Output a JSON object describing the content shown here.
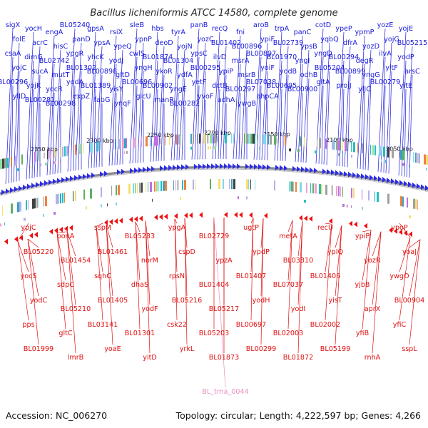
{
  "title": "Bacillus licheniformis ATCC 14580, complete genome",
  "footer": {
    "accession": "Accession: NC_006270",
    "summary": "Topology: circular; Length: 4,222,597 bp; Genes: 4,266"
  },
  "colors": {
    "forward_label": "#1a1adc",
    "reverse_label": "#e01010",
    "rna_label": "#e890c0",
    "forward_arrow": "#2a2aee",
    "reverse_arrow": "#ee1010",
    "backbone": "#8a8a8a"
  },
  "ruler": [
    "2350 kbp",
    "2300 kbp",
    "2250 kbp",
    "2200 kbp",
    "2150 kbp",
    "2100 kbp",
    "2050 kbp"
  ],
  "forward_genes": [
    "sigX",
    "yocH",
    "engA",
    "BL05240",
    "gpsA",
    "rsiX",
    "sleB",
    "hbs",
    "tyrA",
    "panB",
    "recQ",
    "fni",
    "aroB",
    "trpA",
    "panC",
    "cotD",
    "ypeP",
    "ypmP",
    "yozE",
    "yojE",
    "folE",
    "acrC",
    "hisC",
    "panD",
    "ypsA",
    "ypeQ",
    "ypnP",
    "deoD",
    "yojN",
    "yozC",
    "BL01402",
    "BL00896",
    "ypiF",
    "BL02739",
    "ypsB",
    "yqbQ",
    "dfrA",
    "yozD",
    "yojG",
    "BL05215",
    "csaA",
    "dimG",
    "BL02742",
    "ypgR",
    "yhcK",
    "yodJ",
    "cwlS",
    "BL01874",
    "BL01304",
    "ypsC",
    "ilvD",
    "msrA",
    "BL00897",
    "BL01970",
    "yngI",
    "yngD",
    "BL00294",
    "degR",
    "ilvA",
    "yodP",
    "yojC",
    "sucA",
    "mutT",
    "BL01302",
    "BL00898",
    "gltD",
    "yngH",
    "ykoR",
    "ydfA",
    "BL00295",
    "ypiP",
    "msrB",
    "yoiF",
    "yodB",
    "odhB",
    "BL05204",
    "BL00899",
    "yngG",
    "yitF",
    "arsC",
    "BL00296",
    "yojK",
    "yocR",
    "yodA",
    "BL01389",
    "yisY",
    "BL00696",
    "BL00902",
    "yngE",
    "yetF",
    "dctB",
    "BL00297",
    "BL07038",
    "BL00695",
    "BL00900",
    "gltA",
    "projJ",
    "ylJC",
    "BL00279",
    "yitE",
    "ylJD",
    "BL00281",
    "BL00298",
    "expZ",
    "fabG",
    "ynqF",
    "glcU",
    "manR",
    "BL00282",
    "yvoF",
    "adhA",
    "ywgB",
    "ahpCA"
  ],
  "reverse_genes": [
    "ypjC",
    "ponA",
    "sspM",
    "BL05233",
    "ypgA",
    "BL02729",
    "ugtP",
    "metA",
    "recU",
    "ypiP",
    "ypoP",
    "BL05220",
    "BL01454",
    "BL01461",
    "norM",
    "cspD",
    "ypzA",
    "ypdP",
    "BL03310",
    "ypIQ",
    "yozR",
    "yoaJ",
    "yocS",
    "sdpC",
    "sqhC",
    "dhaS",
    "rpsN",
    "BL01404",
    "BL01407",
    "BL07037",
    "BL01406",
    "yjbB",
    "ywgO",
    "yodC",
    "BL05210",
    "BL01405",
    "yodF",
    "BL05216",
    "BL05217",
    "yodH",
    "yodI",
    "yisT",
    "aprX",
    "BL00904",
    "pps",
    "gltC",
    "BL03141",
    "BL01301",
    "csk22",
    "BL05203",
    "BL00697",
    "BL02003",
    "BL02002",
    "yfiB",
    "yfiC",
    "BL01999",
    "lmrB",
    "yoaE",
    "yitD",
    "yrkL",
    "BL01873",
    "BL00299",
    "BL01872",
    "BL05199",
    "rnhA",
    "sspL"
  ],
  "rna_genes": [
    "BL_trna_0044"
  ]
}
